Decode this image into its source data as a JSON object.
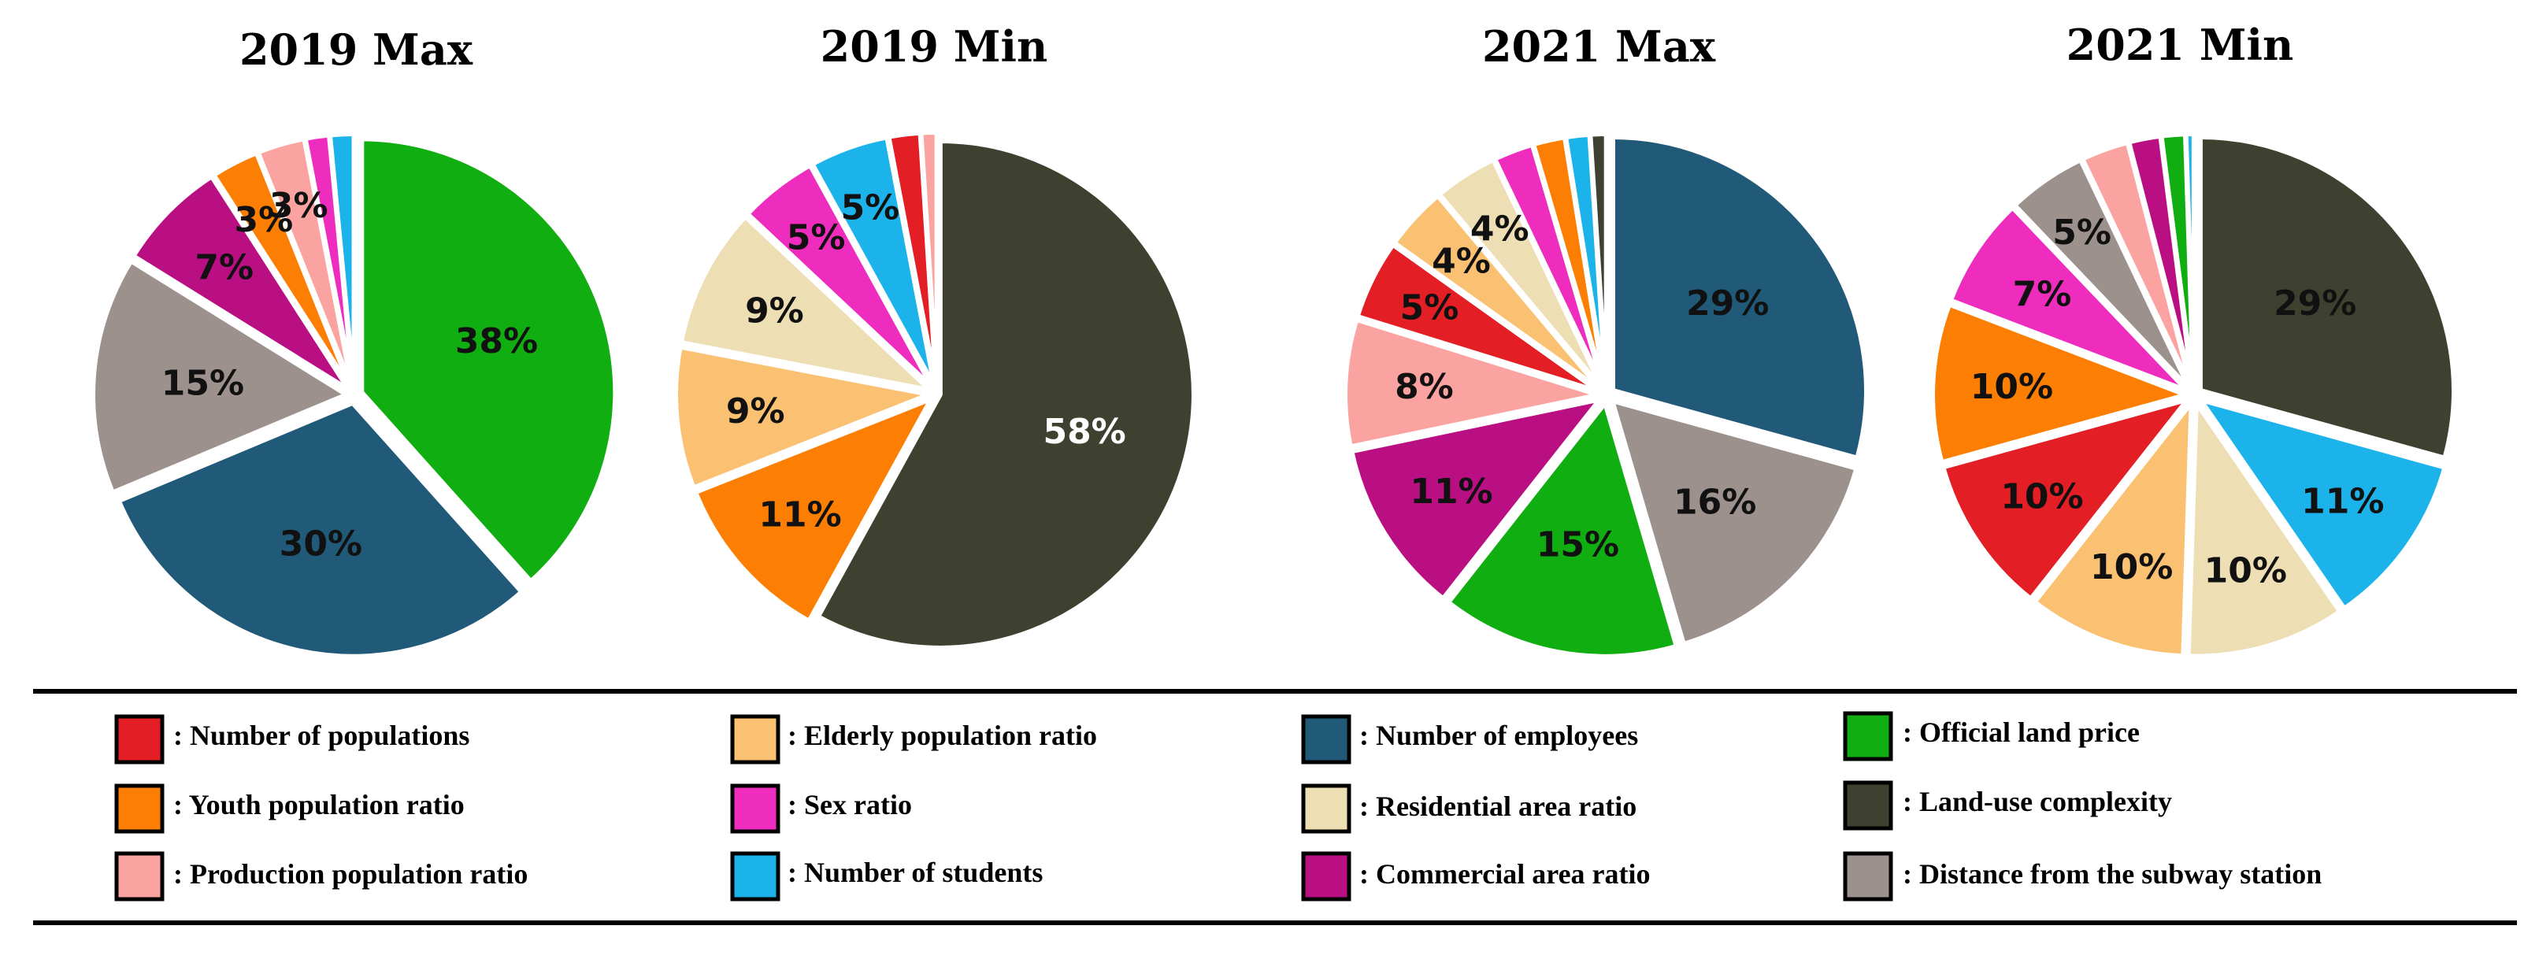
{
  "chart_data": [
    {
      "type": "pie",
      "title": "2019 Max",
      "slices": [
        {
          "factor": "Official land price",
          "value": 38,
          "label": "38%"
        },
        {
          "factor": "Number of employees",
          "value": 30,
          "label": "30%"
        },
        {
          "factor": "Distance from the subway station",
          "value": 15,
          "label": "15%"
        },
        {
          "factor": "Commercial area ratio",
          "value": 7,
          "label": "7%"
        },
        {
          "factor": "Youth population ratio",
          "value": 3,
          "label": "3%"
        },
        {
          "factor": "Production population ratio",
          "value": 3,
          "label": "3%"
        },
        {
          "factor": "Sex ratio",
          "value": 1.5,
          "label": ""
        },
        {
          "factor": "Number of students",
          "value": 1.5,
          "label": ""
        }
      ]
    },
    {
      "type": "pie",
      "title": "2019 Min",
      "slices": [
        {
          "factor": "Land-use complexity",
          "value": 58,
          "label": "58%"
        },
        {
          "factor": "Youth population ratio",
          "value": 11,
          "label": "11%"
        },
        {
          "factor": "Elderly population ratio",
          "value": 9,
          "label": "9%"
        },
        {
          "factor": "Residential area ratio",
          "value": 9,
          "label": "9%"
        },
        {
          "factor": "Sex ratio",
          "value": 5,
          "label": "5%"
        },
        {
          "factor": "Number of students",
          "value": 5,
          "label": "5%"
        },
        {
          "factor": "Number of populations",
          "value": 2,
          "label": ""
        },
        {
          "factor": "Production population ratio",
          "value": 1,
          "label": ""
        }
      ]
    },
    {
      "type": "pie",
      "title": "2021 Max",
      "slices": [
        {
          "factor": "Number of employees",
          "value": 29,
          "label": "29%"
        },
        {
          "factor": "Distance from the subway station",
          "value": 16,
          "label": "16%"
        },
        {
          "factor": "Official land price",
          "value": 15,
          "label": "15%"
        },
        {
          "factor": "Commercial area ratio",
          "value": 11,
          "label": "11%"
        },
        {
          "factor": "Production population ratio",
          "value": 8,
          "label": "8%"
        },
        {
          "factor": "Number of populations",
          "value": 5,
          "label": "5%"
        },
        {
          "factor": "Elderly population ratio",
          "value": 4,
          "label": "4%"
        },
        {
          "factor": "Residential area ratio",
          "value": 4,
          "label": "4%"
        },
        {
          "factor": "Sex ratio",
          "value": 2.5,
          "label": ""
        },
        {
          "factor": "Youth population ratio",
          "value": 2,
          "label": ""
        },
        {
          "factor": "Number of students",
          "value": 1.5,
          "label": ""
        },
        {
          "factor": "Land-use complexity",
          "value": 1,
          "label": ""
        }
      ]
    },
    {
      "type": "pie",
      "title": "2021 Min",
      "slices": [
        {
          "factor": "Land-use complexity",
          "value": 29,
          "label": "29%"
        },
        {
          "factor": "Number of students",
          "value": 11,
          "label": "11%"
        },
        {
          "factor": "Residential area ratio",
          "value": 10,
          "label": "10%"
        },
        {
          "factor": "Elderly population ratio",
          "value": 10,
          "label": "10%"
        },
        {
          "factor": "Number of populations",
          "value": 10,
          "label": "10%"
        },
        {
          "factor": "Youth population ratio",
          "value": 10,
          "label": "10%"
        },
        {
          "factor": "Sex ratio",
          "value": 7,
          "label": "7%"
        },
        {
          "factor": "Distance from the subway station",
          "value": 5,
          "label": "5%"
        },
        {
          "factor": "Production population ratio",
          "value": 3,
          "label": ""
        },
        {
          "factor": "Commercial area ratio",
          "value": 2,
          "label": ""
        },
        {
          "factor": "Official land price",
          "value": 1.5,
          "label": ""
        },
        {
          "factor": "Number of students",
          "value": 0.5,
          "label": ""
        }
      ]
    }
  ],
  "legend": [
    {
      "factor": "Number of populations",
      "text": ": Number of populations",
      "color": "#E31E24"
    },
    {
      "factor": "Elderly population ratio",
      "text": ": Elderly population ratio",
      "color": "#FBC172"
    },
    {
      "factor": "Number of employees",
      "text": ": Number of employees",
      "color": "#205A78"
    },
    {
      "factor": "Official land price",
      "text": ": Official land price",
      "color": "#11AE11"
    },
    {
      "factor": "Youth population ratio",
      "text": ": Youth population ratio",
      "color": "#FC7F04"
    },
    {
      "factor": "Sex ratio",
      "text": ": Sex ratio",
      "color": "#EE2CBE"
    },
    {
      "factor": "Residential area ratio",
      "text": ": Residential area ratio",
      "color": "#EDDEB4"
    },
    {
      "factor": "Land-use complexity",
      "text": ": Land-use complexity",
      "color": "#3F4130"
    },
    {
      "factor": "Production population ratio",
      "text": ": Production population ratio",
      "color": "#FBA3A0"
    },
    {
      "factor": "Number of students",
      "text": ": Number of students",
      "color": "#1CB3EB"
    },
    {
      "factor": "Commercial area ratio",
      "text": ": Commercial area ratio",
      "color": "#BA0F82"
    },
    {
      "factor": "Distance from the subway station",
      "text": ": Distance from the subway station",
      "color": "#9D918D"
    }
  ]
}
